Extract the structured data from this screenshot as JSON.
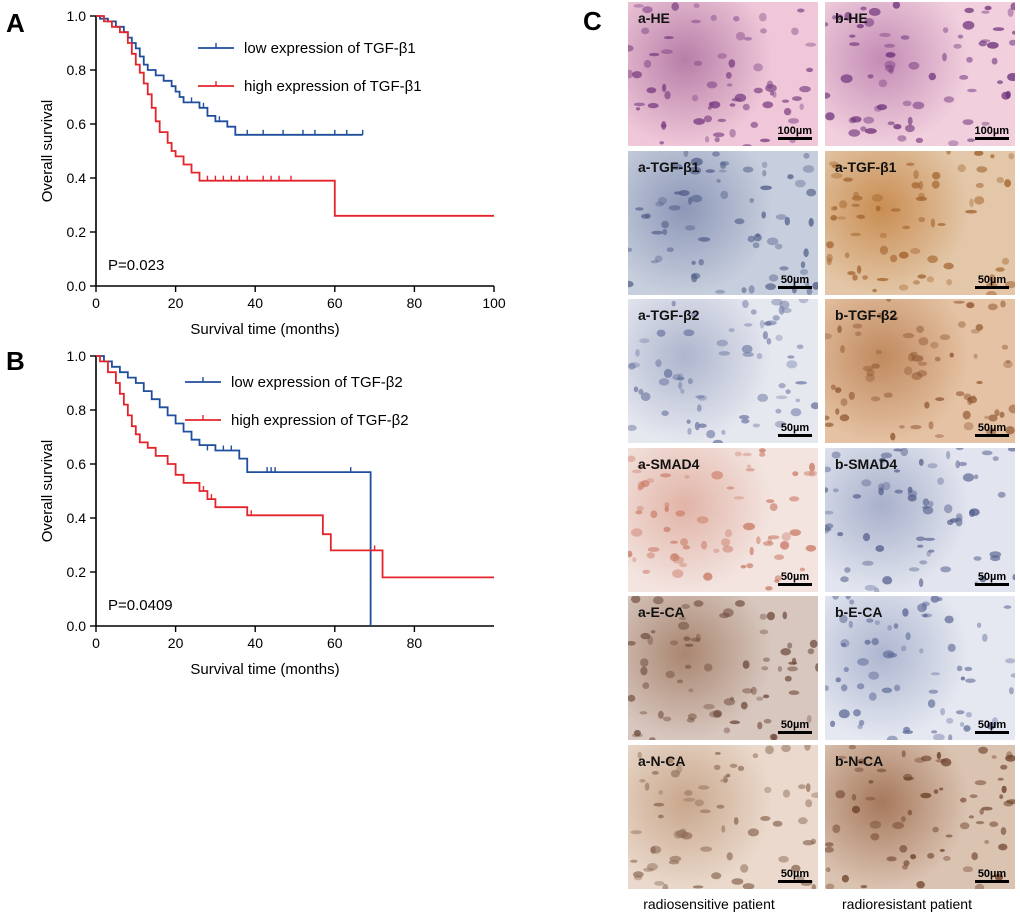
{
  "panel_letters": {
    "a": "A",
    "b": "B",
    "c": "C"
  },
  "chart_data": [
    {
      "type": "line",
      "ylabel": "Overall survival",
      "xlabel": "Survival time (months)",
      "xlim": [
        0,
        100
      ],
      "ylim": [
        0,
        1.0
      ],
      "xticks": [
        0,
        20,
        40,
        60,
        80,
        100
      ],
      "yticks": [
        0.0,
        0.2,
        0.4,
        0.6,
        0.8,
        1.0
      ],
      "annotation": "P=0.023",
      "legend_position": "top-right",
      "series": [
        {
          "name": "low expression of TGF-β1",
          "color": "#1f4e9c",
          "steps": [
            [
              0,
              1.0
            ],
            [
              1,
              0.99
            ],
            [
              3,
              0.98
            ],
            [
              5,
              0.96
            ],
            [
              7,
              0.94
            ],
            [
              8,
              0.92
            ],
            [
              9,
              0.9
            ],
            [
              10,
              0.88
            ],
            [
              11,
              0.85
            ],
            [
              12,
              0.82
            ],
            [
              13,
              0.8
            ],
            [
              15,
              0.78
            ],
            [
              17,
              0.76
            ],
            [
              19,
              0.74
            ],
            [
              20,
              0.72
            ],
            [
              21,
              0.7
            ],
            [
              22,
              0.68
            ],
            [
              26,
              0.66
            ],
            [
              28,
              0.63
            ],
            [
              30,
              0.61
            ],
            [
              33,
              0.59
            ],
            [
              35,
              0.56
            ],
            [
              67,
              0.56
            ]
          ],
          "censors": [
            [
              24,
              0.68
            ],
            [
              27,
              0.66
            ],
            [
              31,
              0.61
            ],
            [
              38,
              0.56
            ],
            [
              42,
              0.56
            ],
            [
              47,
              0.56
            ],
            [
              52,
              0.56
            ],
            [
              55,
              0.56
            ],
            [
              60,
              0.56
            ],
            [
              63,
              0.56
            ],
            [
              67,
              0.56
            ]
          ]
        },
        {
          "name": "high expression of TGF-β1",
          "color": "#e3242b",
          "steps": [
            [
              0,
              1.0
            ],
            [
              2,
              0.98
            ],
            [
              4,
              0.96
            ],
            [
              6,
              0.94
            ],
            [
              8,
              0.9
            ],
            [
              9,
              0.86
            ],
            [
              10,
              0.82
            ],
            [
              11,
              0.79
            ],
            [
              12,
              0.75
            ],
            [
              13,
              0.71
            ],
            [
              14,
              0.66
            ],
            [
              15,
              0.61
            ],
            [
              16,
              0.57
            ],
            [
              18,
              0.53
            ],
            [
              19,
              0.5
            ],
            [
              20,
              0.48
            ],
            [
              22,
              0.45
            ],
            [
              24,
              0.42
            ],
            [
              26,
              0.39
            ],
            [
              60,
              0.39
            ],
            [
              60,
              0.26
            ],
            [
              100,
              0.26
            ]
          ],
          "censors": [
            [
              28,
              0.39
            ],
            [
              30,
              0.39
            ],
            [
              32,
              0.39
            ],
            [
              34,
              0.39
            ],
            [
              36,
              0.39
            ],
            [
              38,
              0.39
            ],
            [
              42,
              0.39
            ],
            [
              44,
              0.39
            ],
            [
              46,
              0.39
            ],
            [
              49,
              0.39
            ],
            [
              60,
              0.26
            ]
          ]
        }
      ]
    },
    {
      "type": "line",
      "ylabel": "Overall survival",
      "xlabel": "Survival time (months)",
      "xlim": [
        0,
        100
      ],
      "ylim": [
        0,
        1.0
      ],
      "xticks": [
        0,
        20,
        40,
        60,
        80
      ],
      "yticks": [
        0.0,
        0.2,
        0.4,
        0.6,
        0.8,
        1.0
      ],
      "annotation": "P=0.0409",
      "legend_position": "top-right",
      "series": [
        {
          "name": "low expression of TGF-β2",
          "color": "#1f4e9c",
          "steps": [
            [
              0,
              1.0
            ],
            [
              2,
              0.98
            ],
            [
              4,
              0.96
            ],
            [
              6,
              0.94
            ],
            [
              8,
              0.92
            ],
            [
              10,
              0.9
            ],
            [
              12,
              0.87
            ],
            [
              14,
              0.84
            ],
            [
              16,
              0.81
            ],
            [
              18,
              0.78
            ],
            [
              20,
              0.75
            ],
            [
              22,
              0.72
            ],
            [
              24,
              0.69
            ],
            [
              26,
              0.67
            ],
            [
              30,
              0.65
            ],
            [
              36,
              0.62
            ],
            [
              38,
              0.57
            ],
            [
              69,
              0.57
            ],
            [
              69,
              0.0
            ]
          ],
          "censors": [
            [
              28,
              0.65
            ],
            [
              32,
              0.65
            ],
            [
              34,
              0.65
            ],
            [
              43,
              0.57
            ],
            [
              44,
              0.57
            ],
            [
              45,
              0.57
            ],
            [
              64,
              0.57
            ]
          ]
        },
        {
          "name": "high expression of TGF-β2",
          "color": "#e3242b",
          "steps": [
            [
              0,
              1.0
            ],
            [
              1,
              0.98
            ],
            [
              3,
              0.94
            ],
            [
              5,
              0.9
            ],
            [
              6,
              0.86
            ],
            [
              7,
              0.82
            ],
            [
              8,
              0.78
            ],
            [
              9,
              0.74
            ],
            [
              10,
              0.71
            ],
            [
              11,
              0.68
            ],
            [
              13,
              0.66
            ],
            [
              15,
              0.63
            ],
            [
              18,
              0.6
            ],
            [
              20,
              0.56
            ],
            [
              22,
              0.53
            ],
            [
              26,
              0.5
            ],
            [
              28,
              0.47
            ],
            [
              30,
              0.44
            ],
            [
              38,
              0.41
            ],
            [
              57,
              0.41
            ],
            [
              57,
              0.34
            ],
            [
              59,
              0.34
            ],
            [
              59,
              0.28
            ],
            [
              72,
              0.28
            ],
            [
              72,
              0.18
            ],
            [
              100,
              0.18
            ]
          ],
          "censors": [
            [
              27,
              0.5
            ],
            [
              29,
              0.47
            ],
            [
              39,
              0.41
            ],
            [
              70,
              0.28
            ]
          ]
        }
      ]
    }
  ],
  "ihc": {
    "tiles": [
      {
        "label": "a-HE",
        "scale": "100µm",
        "bg1": "#efc7d8",
        "bg2": "#b77fa8",
        "dot": "#7b3d82"
      },
      {
        "label": "b-HE",
        "scale": "100µm",
        "bg1": "#f1cfdd",
        "bg2": "#c48cb5",
        "dot": "#6c2f78"
      },
      {
        "label": "a-TGF-β1",
        "scale": "50µm",
        "bg1": "#c7cedd",
        "bg2": "#8d98b8",
        "dot": "#515e88"
      },
      {
        "label": "a-TGF-β1",
        "scale": "50µm",
        "bg1": "#e3c7a8",
        "bg2": "#c98d52",
        "dot": "#a0612b"
      },
      {
        "label": "a-TGF-β2",
        "scale": "50µm",
        "bg1": "#e6e8f0",
        "bg2": "#aeb5cd",
        "dot": "#6f7aa3"
      },
      {
        "label": "b-TGF-β2",
        "scale": "50µm",
        "bg1": "#e5c2a3",
        "bg2": "#c08a5f",
        "dot": "#8d5530"
      },
      {
        "label": "a-SMAD4",
        "scale": "50µm",
        "bg1": "#f3e4e0",
        "bg2": "#e1b4a7",
        "dot": "#c97a66"
      },
      {
        "label": "b-SMAD4",
        "scale": "50µm",
        "bg1": "#e2e5ef",
        "bg2": "#a8b0cb",
        "dot": "#55608c"
      },
      {
        "label": "a-E-CA",
        "scale": "50µm",
        "bg1": "#d8c7bf",
        "bg2": "#a98670",
        "dot": "#6d4a3a"
      },
      {
        "label": "b-E-CA",
        "scale": "50µm",
        "bg1": "#e5e8f1",
        "bg2": "#aeb6d0",
        "dot": "#5c6896"
      },
      {
        "label": "a-N-CA",
        "scale": "50µm",
        "bg1": "#ead9cc",
        "bg2": "#c9a78c",
        "dot": "#8c6a55"
      },
      {
        "label": "b-N-CA",
        "scale": "50µm",
        "bg1": "#dbc3b2",
        "bg2": "#a6795c",
        "dot": "#6a3d25"
      }
    ],
    "captions": [
      "radiosensitive patient",
      "radioresistant patient"
    ]
  }
}
